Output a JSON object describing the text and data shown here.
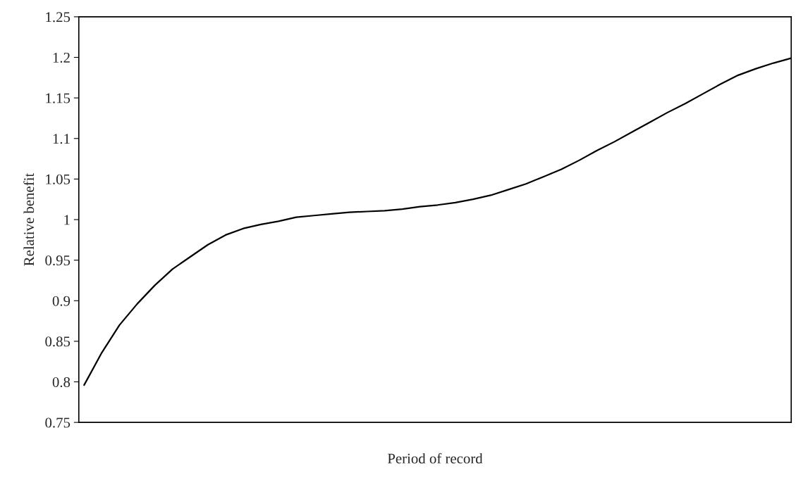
{
  "chart_data": {
    "type": "line",
    "xlabel": "Period of record",
    "ylabel": "Relative benefit",
    "categories": [
      null,
      null,
      null,
      null,
      null,
      null,
      null,
      null,
      null,
      null,
      null,
      null,
      null,
      null,
      null,
      null,
      null,
      null,
      null,
      null,
      null,
      null,
      null,
      null,
      null,
      null,
      null,
      null,
      null,
      null,
      null,
      null,
      null,
      null,
      null,
      null,
      null,
      null,
      null,
      null,
      null
    ],
    "series": [
      {
        "color": "#000000",
        "values": [
          0.796,
          0.836,
          0.87,
          0.896,
          0.919,
          0.939,
          0.954,
          0.969,
          0.981,
          0.989,
          0.994,
          0.998,
          1.003,
          1.005,
          1.007,
          1.009,
          1.01,
          1.011,
          1.013,
          1.016,
          1.018,
          1.021,
          1.025,
          1.03,
          1.037,
          1.044,
          1.053,
          1.062,
          1.073,
          1.085,
          1.096,
          1.108,
          1.12,
          1.132,
          1.143,
          1.155,
          1.167,
          1.178,
          1.186,
          1.193,
          1.199
        ]
      }
    ],
    "ylim": [
      0.75,
      1.25
    ],
    "yticks": [
      0.75,
      0.8,
      0.85,
      0.9,
      0.95,
      1,
      1.05,
      1.1,
      1.15,
      1.2,
      1.25
    ],
    "grid": false,
    "legend": false,
    "marker": "none",
    "line_style": "solid"
  }
}
